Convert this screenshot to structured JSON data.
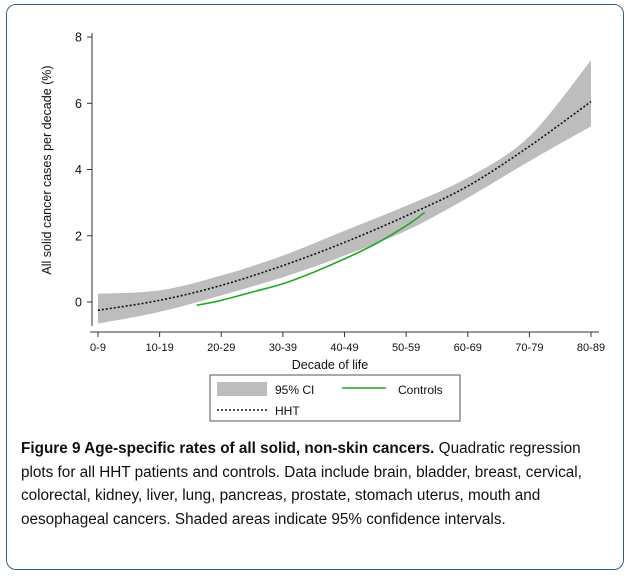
{
  "chart_data": {
    "type": "line",
    "xlabel": "Decade of life",
    "ylabel": "All solid cancer cases per decade (%)",
    "categories": [
      "0-9",
      "10-19",
      "20-29",
      "30-39",
      "40-49",
      "50-59",
      "60-69",
      "70-79",
      "80-89"
    ],
    "x_ticks": [
      0,
      1,
      2,
      3,
      4,
      5,
      6,
      7,
      8
    ],
    "y_ticks": [
      0,
      2,
      4,
      6,
      8
    ],
    "xlim": [
      0,
      8
    ],
    "ylim": [
      -0.95,
      8.1
    ],
    "grid": false,
    "legend_position": "bottom",
    "series": [
      {
        "name": "95% CI",
        "type": "band",
        "color": "#bdbdbd",
        "x": [
          0,
          1,
          2,
          3,
          4,
          5,
          6,
          7,
          8
        ],
        "lower": [
          -0.65,
          -0.3,
          0.2,
          0.75,
          1.4,
          2.15,
          3.15,
          4.25,
          5.3
        ],
        "upper": [
          0.25,
          0.35,
          0.8,
          1.4,
          2.15,
          2.9,
          3.75,
          5.0,
          7.3
        ]
      },
      {
        "name": "HHT",
        "type": "line",
        "style": "dotted",
        "color": "#111111",
        "x": [
          0,
          1,
          2,
          3,
          4,
          5,
          6,
          7,
          8
        ],
        "y": [
          -0.25,
          0.05,
          0.5,
          1.1,
          1.8,
          2.6,
          3.5,
          4.7,
          6.05
        ]
      },
      {
        "name": "Controls",
        "type": "line",
        "style": "solid",
        "color": "#22a822",
        "x": [
          1.6,
          2,
          2.5,
          3,
          3.5,
          4,
          4.5,
          5,
          5.3
        ],
        "y": [
          -0.1,
          0.05,
          0.3,
          0.55,
          0.9,
          1.3,
          1.75,
          2.3,
          2.7
        ]
      }
    ]
  },
  "legend": {
    "items": [
      {
        "label": "95% CI",
        "color": "#bdbdbd",
        "style": "band"
      },
      {
        "label": "Controls",
        "color": "#22a822",
        "style": "solid"
      },
      {
        "label": "HHT",
        "color": "#111111",
        "style": "dotted"
      }
    ]
  },
  "caption": {
    "title": "Figure 9 Age-specific rates of all solid, non-skin cancers.",
    "text": "Quadratic regression plots for all HHT patients and controls. Data include brain, bladder, breast, cervical, colorectal, kidney, liver, lung, pancreas, prostate, stomach uterus, mouth and oesophageal cancers. Shaded areas indicate 95% confidence intervals."
  }
}
